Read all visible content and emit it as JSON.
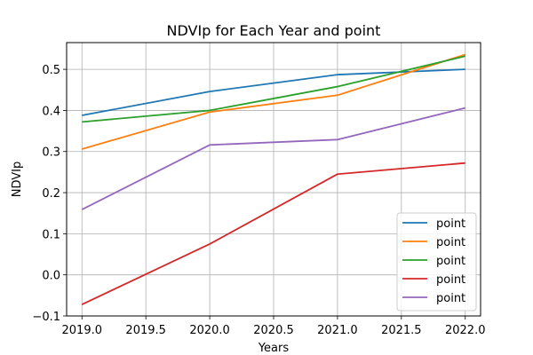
{
  "chart_data": {
    "type": "line",
    "title": "NDVIp for Each Year and point",
    "xlabel": "Years",
    "ylabel": "NDVIp",
    "x": [
      2019,
      2020,
      2021,
      2022
    ],
    "xlim": [
      2018.88,
      2022.12
    ],
    "ylim": [
      -0.1,
      0.565
    ],
    "x_ticks": [
      2019.0,
      2019.5,
      2020.0,
      2020.5,
      2021.0,
      2021.5,
      2022.0
    ],
    "x_tick_labels": [
      "2019.0",
      "2019.5",
      "2020.0",
      "2020.5",
      "2021.0",
      "2021.5",
      "2022.0"
    ],
    "y_ticks": [
      -0.1,
      0.0,
      0.1,
      0.2,
      0.3,
      0.4,
      0.5
    ],
    "y_tick_labels": [
      "−0.1",
      "0.0",
      "0.1",
      "0.2",
      "0.3",
      "0.4",
      "0.5"
    ],
    "grid": true,
    "legend_position": "lower-right",
    "series": [
      {
        "name": "point",
        "color": "#1f77b4",
        "values": [
          0.388,
          0.446,
          0.487,
          0.5
        ]
      },
      {
        "name": "point",
        "color": "#ff7f0e",
        "values": [
          0.306,
          0.396,
          0.437,
          0.536
        ]
      },
      {
        "name": "point",
        "color": "#2ca02c",
        "values": [
          0.372,
          0.4,
          0.458,
          0.532
        ]
      },
      {
        "name": "point",
        "color": "#d62728",
        "values": [
          -0.072,
          0.075,
          0.245,
          0.272
        ]
      },
      {
        "name": "point",
        "color": "#9467bd",
        "values": [
          0.159,
          0.316,
          0.329,
          0.406
        ]
      }
    ]
  }
}
